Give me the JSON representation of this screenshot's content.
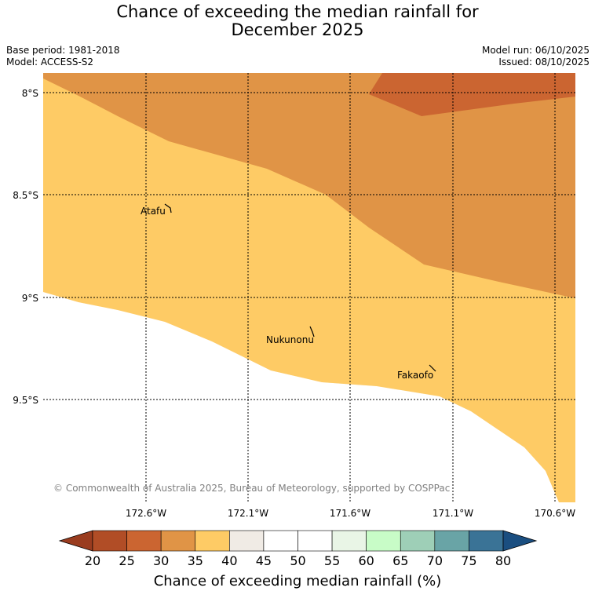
{
  "title": {
    "line1": "Chance of exceeding the median rainfall for",
    "line2": "December 2025"
  },
  "meta": {
    "base_period": "Base period: 1981-2018",
    "model": "Model: ACCESS-S2",
    "model_run": "Model run: 06/10/2025",
    "issued": "Issued: 08/10/2025"
  },
  "map": {
    "lat_labels": [
      "8°S",
      "8.5°S",
      "9°S",
      "9.5°S"
    ],
    "lon_labels": [
      "172.6°W",
      "172.1°W",
      "171.6°W",
      "171.1°W",
      "170.6°W"
    ],
    "places": [
      {
        "name": "Atafu"
      },
      {
        "name": "Nukunonu"
      },
      {
        "name": "Fakaofo"
      }
    ],
    "copyright": "© Commonwealth of Australia 2025, Bureau of Meteorology, supported by COSPPac",
    "colors": {
      "band_20_25": "#b14d26",
      "band_25_30": "#cb6531",
      "band_30_35": "#e09446",
      "band_35_40": "#fecb65",
      "band_40_45": "#f0ebe5",
      "outside": "#ffffff"
    }
  },
  "colorbar": {
    "ticks": [
      "20",
      "25",
      "30",
      "35",
      "40",
      "45",
      "50",
      "55",
      "60",
      "65",
      "70",
      "75",
      "80"
    ],
    "colors": [
      "#b14d26",
      "#cb6531",
      "#e09446",
      "#fecb65",
      "#f0ebe5",
      "#ffffff",
      "#ffffff",
      "#e9f5e6",
      "#c8fcc7",
      "#9ecfb7",
      "#69a4a6",
      "#3a7396"
    ],
    "under_color": "#9a3c1f",
    "over_color": "#1a4e80",
    "label": "Chance of exceeding median rainfall (%)"
  }
}
